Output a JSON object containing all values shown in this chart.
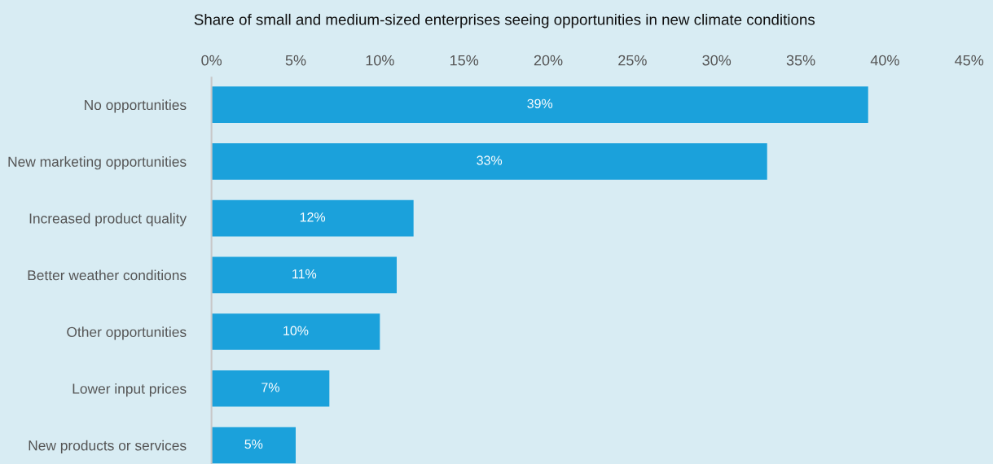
{
  "chart_data": {
    "type": "bar",
    "orientation": "horizontal",
    "title": "Share of small and medium-sized enterprises seeing opportunities in new climate conditions",
    "categories": [
      "No opportunities",
      "New marketing opportunities",
      "Increased product quality",
      "Better weather conditions",
      "Other opportunities",
      "Lower input prices",
      "New products or services"
    ],
    "values": [
      39,
      33,
      12,
      11,
      10,
      7,
      5
    ],
    "value_labels": [
      "39%",
      "33%",
      "12%",
      "11%",
      "10%",
      "7%",
      "5%"
    ],
    "color": "#1ba1db",
    "xlim": [
      0,
      45
    ],
    "xticks": [
      {
        "value": 0,
        "label": "0%"
      },
      {
        "value": 5,
        "label": "5%"
      },
      {
        "value": 10,
        "label": "10%"
      },
      {
        "value": 15,
        "label": "15%"
      },
      {
        "value": 20,
        "label": "20%"
      },
      {
        "value": 25,
        "label": "25%"
      },
      {
        "value": 30,
        "label": "30%"
      },
      {
        "value": 35,
        "label": "35%"
      },
      {
        "value": 40,
        "label": "40%"
      },
      {
        "value": 45,
        "label": "45%"
      }
    ],
    "grid": false,
    "legend": false
  }
}
